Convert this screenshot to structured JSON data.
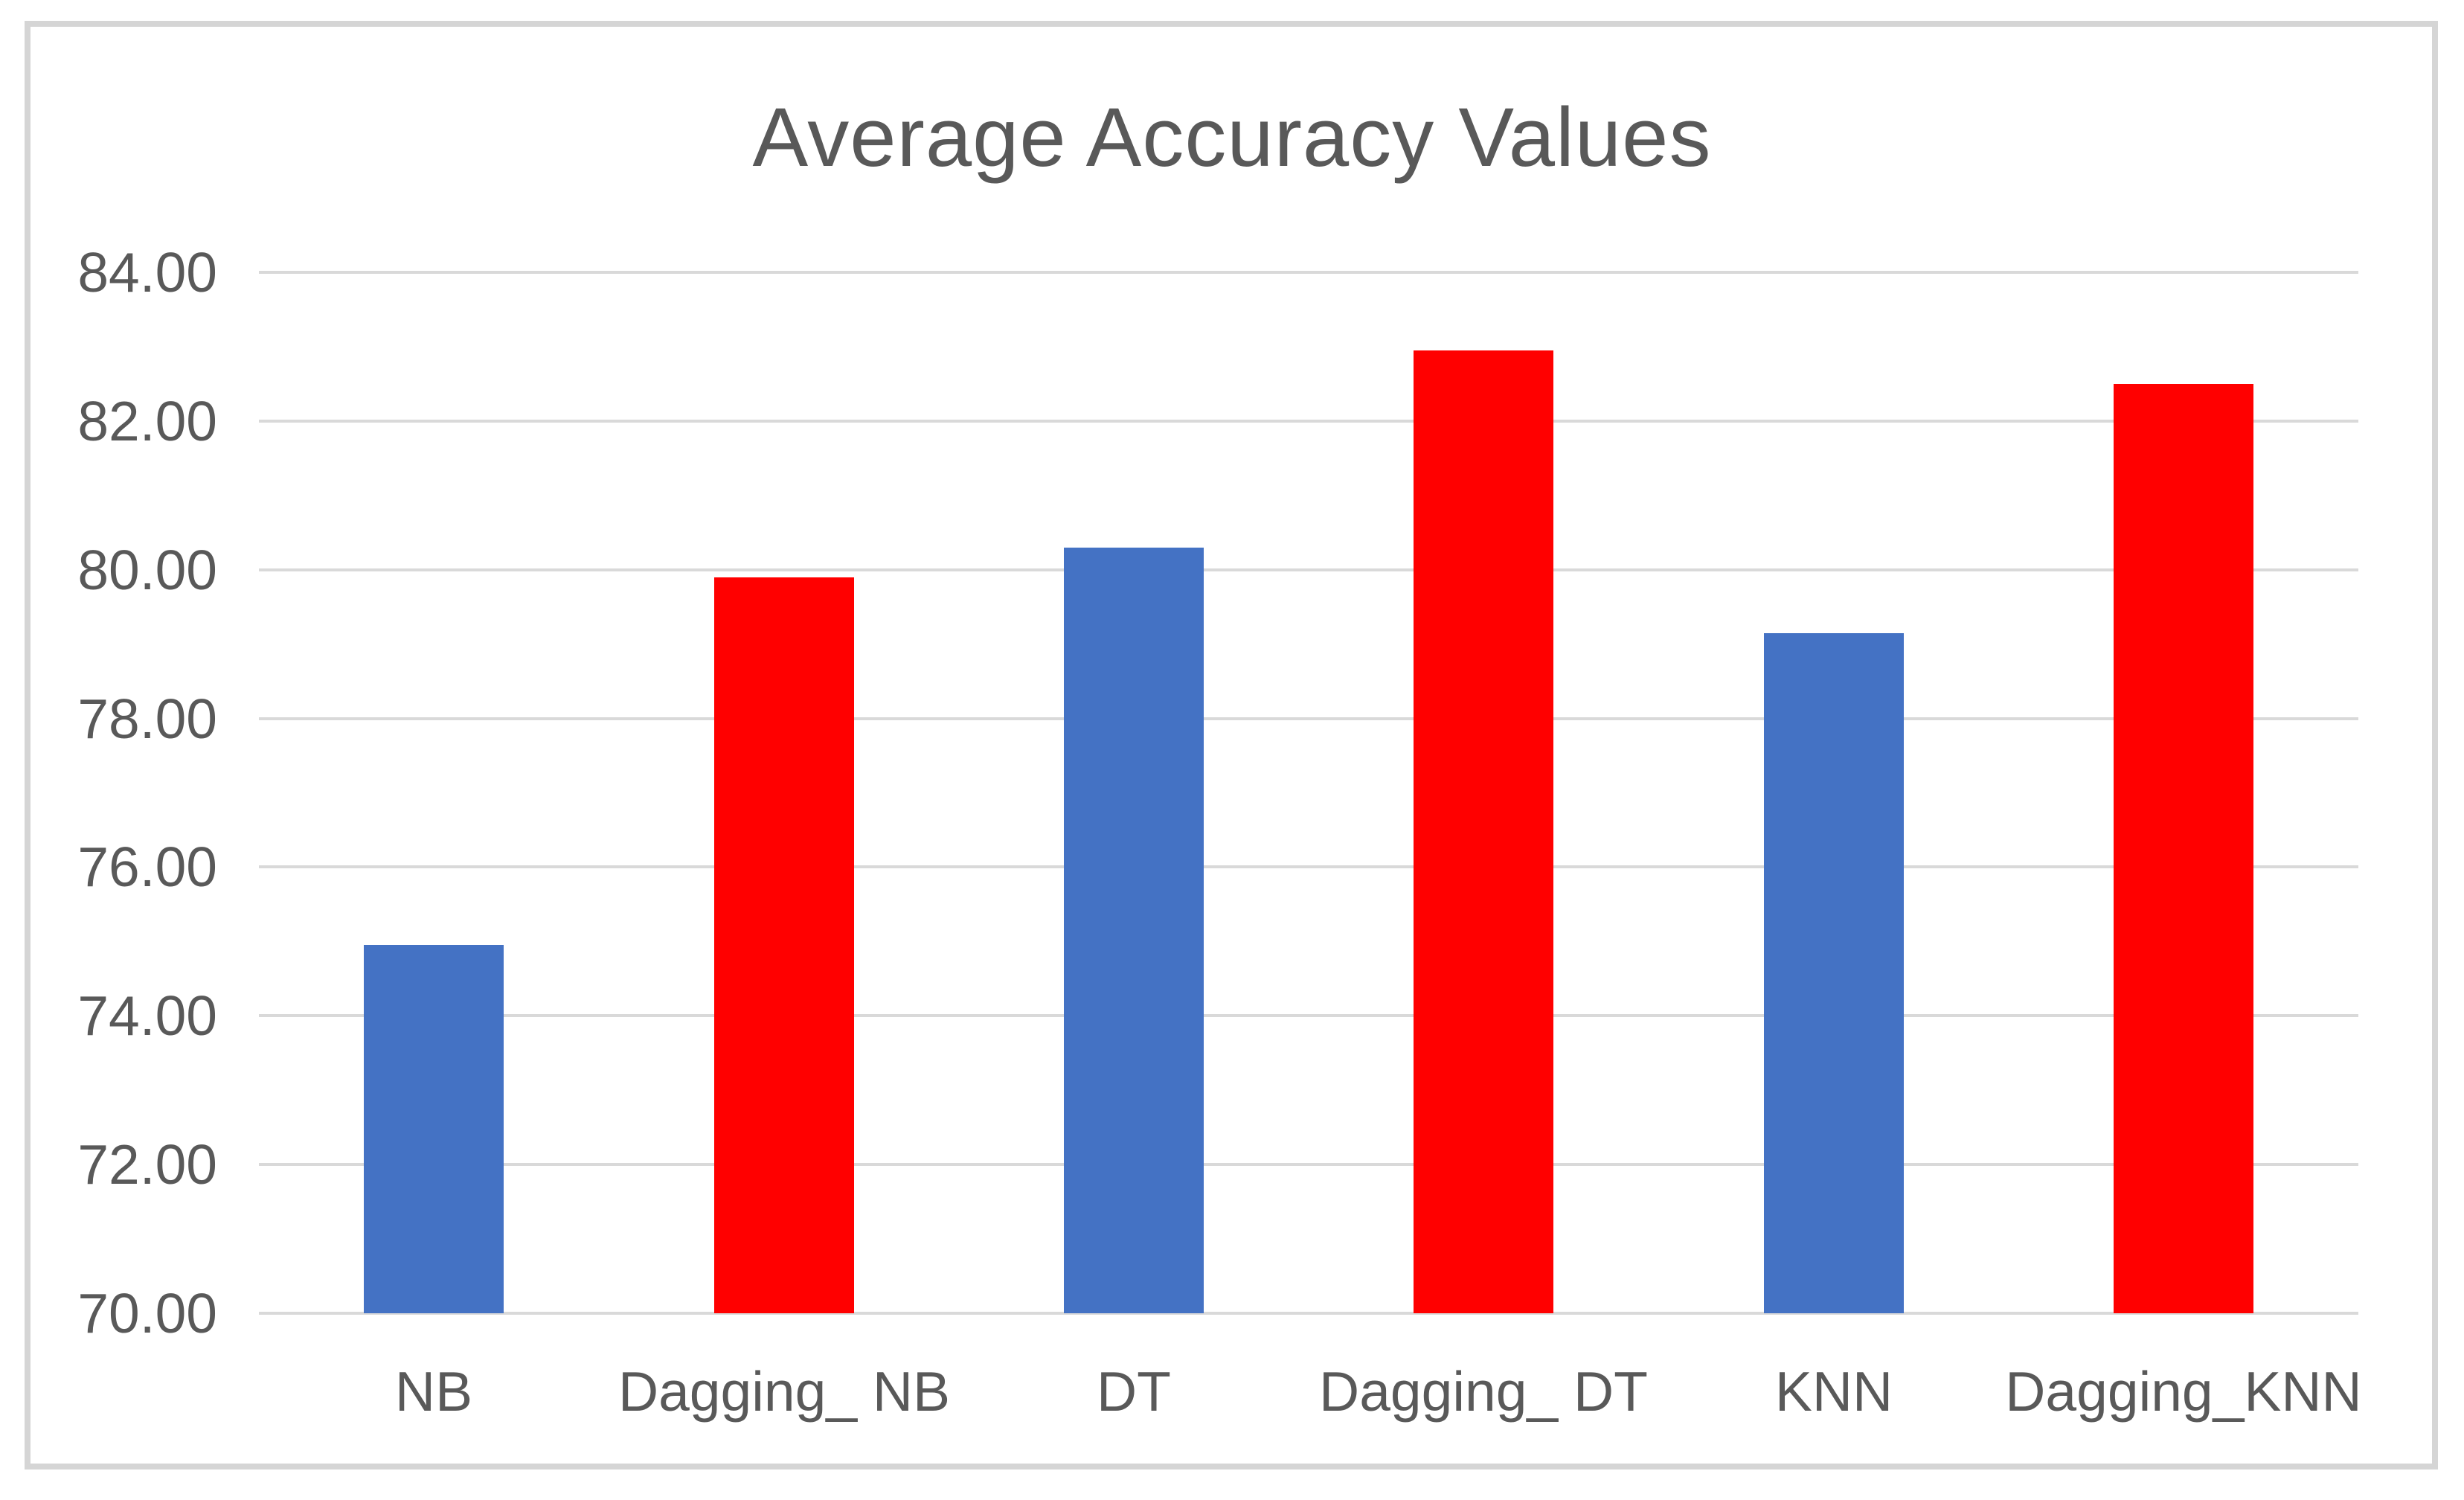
{
  "chart_data": {
    "type": "bar",
    "title": "Average Accuracy Values",
    "categories": [
      "NB",
      "Dagging_ NB",
      "DT",
      "Dagging_ DT",
      "KNN",
      "Dagging_KNN"
    ],
    "values": [
      74.95,
      79.9,
      80.3,
      82.95,
      79.15,
      82.5
    ],
    "bar_colors": [
      "#4472C4",
      "#FF0000",
      "#4472C4",
      "#FF0000",
      "#4472C4",
      "#FF0000"
    ],
    "xlabel": "",
    "ylabel": "",
    "ylim": [
      70,
      84
    ],
    "ytick_step": 2,
    "ytick_labels": [
      "70.00",
      "72.00",
      "74.00",
      "76.00",
      "78.00",
      "80.00",
      "82.00",
      "84.00"
    ],
    "grid": true,
    "legend": "none",
    "colors": {
      "bar_blue": "#4472C4",
      "bar_red": "#FF0000",
      "gridline": "#D9D9D9",
      "axis_text": "#595959",
      "title_text": "#595959",
      "frame_border": "#D5D5D5",
      "background": "#FFFFFF"
    }
  }
}
